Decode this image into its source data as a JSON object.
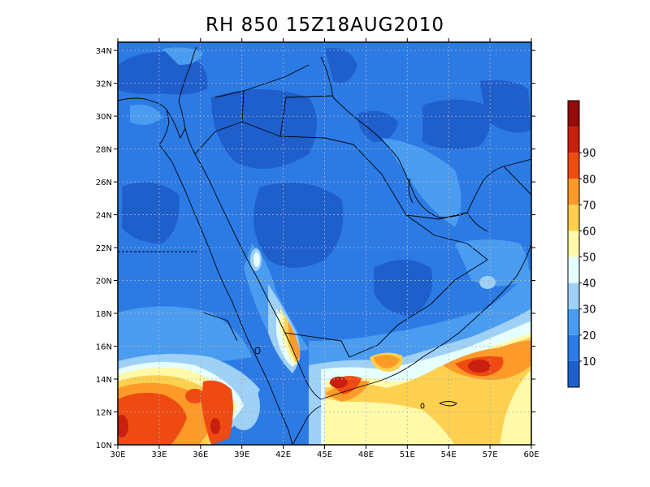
{
  "title": "RH 850 15Z18AUG2010",
  "map": {
    "lat_ticks": [
      "10N",
      "12N",
      "14N",
      "16N",
      "18N",
      "20N",
      "22N",
      "24N",
      "26N",
      "28N",
      "30N",
      "32N",
      "34N"
    ],
    "lon_ticks": [
      "30E",
      "33E",
      "36E",
      "39E",
      "42E",
      "45E",
      "48E",
      "51E",
      "54E",
      "57E",
      "60E"
    ],
    "lat_range": [
      10,
      34.5
    ],
    "lon_range": [
      30,
      60
    ],
    "gridlines": true
  },
  "colorbar": {
    "labels": [
      "10",
      "20",
      "30",
      "40",
      "50",
      "60",
      "70",
      "80",
      "90"
    ],
    "colors": [
      "#1f5fcc",
      "#2c7be5",
      "#4a9cf0",
      "#9fd0f6",
      "#e6ffff",
      "#fffaaa",
      "#fdd050",
      "#fd9a28",
      "#ee4a12",
      "#c8200e",
      "#960a0a"
    ]
  }
}
